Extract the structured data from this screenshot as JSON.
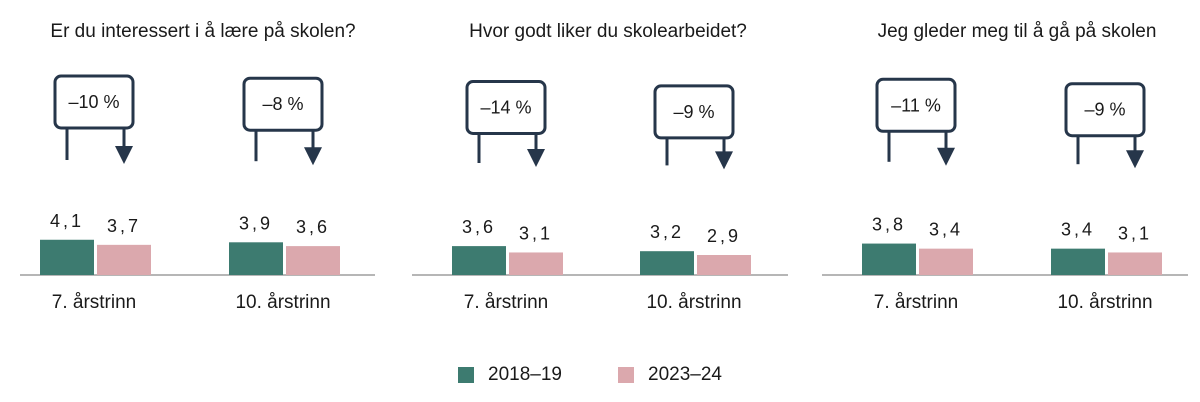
{
  "colors": {
    "series_2018": "#3d7b70",
    "series_2023": "#dba8ad",
    "arrow": "#26364a",
    "axis": "#8a8a8a",
    "text": "#1a1a1a"
  },
  "legend": [
    {
      "label": "2018–19",
      "color": "#3d7b70"
    },
    {
      "label": "2023–24",
      "color": "#dba8ad"
    }
  ],
  "chart_data": [
    {
      "type": "bar",
      "title": "Er du interessert i å lære på skolen?",
      "categories": [
        "7. årstrinn",
        "10. årstrinn"
      ],
      "series": [
        {
          "name": "2018–19",
          "values": [
            4.1,
            3.9
          ],
          "labels": [
            "4,1",
            "3,9"
          ]
        },
        {
          "name": "2023–24",
          "values": [
            3.7,
            3.6
          ],
          "labels": [
            "3,7",
            "3,6"
          ]
        }
      ],
      "changes": [
        "–10 %",
        "–8 %"
      ],
      "xlabel": "",
      "ylabel": ""
    },
    {
      "type": "bar",
      "title": "Hvor godt liker du skolearbeidet?",
      "categories": [
        "7. årstrinn",
        "10. årstrinn"
      ],
      "series": [
        {
          "name": "2018–19",
          "values": [
            3.6,
            3.2
          ],
          "labels": [
            "3,6",
            "3,2"
          ]
        },
        {
          "name": "2023–24",
          "values": [
            3.1,
            2.9
          ],
          "labels": [
            "3,1",
            "2,9"
          ]
        }
      ],
      "changes": [
        "–14 %",
        "–9 %"
      ],
      "xlabel": "",
      "ylabel": ""
    },
    {
      "type": "bar",
      "title": "Jeg gleder meg til å gå på skolen",
      "categories": [
        "7. årstrinn",
        "10. årstrinn"
      ],
      "series": [
        {
          "name": "2018–19",
          "values": [
            3.8,
            3.4
          ],
          "labels": [
            "3,8",
            "3,4"
          ]
        },
        {
          "name": "2023–24",
          "values": [
            3.4,
            3.1
          ],
          "labels": [
            "3,4",
            "3,1"
          ]
        }
      ],
      "changes": [
        "–11 %",
        "–9 %"
      ],
      "xlabel": "",
      "ylabel": ""
    }
  ]
}
